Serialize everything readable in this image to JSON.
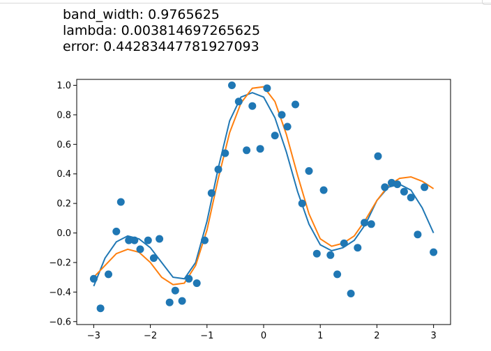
{
  "output": {
    "lines": [
      "band_width: 0.9765625",
      "lambda: 0.003814697265625",
      "error: 0.44283447781927093"
    ]
  },
  "colors": {
    "scatter": "#1f77b4",
    "fit_line": "#1f77b4",
    "true_line": "#ff7f0e"
  },
  "chart_data": {
    "type": "scatter",
    "title": "",
    "xlabel": "",
    "ylabel": "",
    "xlim": [
      -3.3,
      3.3
    ],
    "ylim": [
      -0.62,
      1.04
    ],
    "xticks": [
      -3,
      -2,
      -1,
      0,
      1,
      2,
      3
    ],
    "xtick_labels": [
      "−3",
      "−2",
      "−1",
      "0",
      "1",
      "2",
      "3"
    ],
    "yticks": [
      -0.6,
      -0.4,
      -0.2,
      0.0,
      0.2,
      0.4,
      0.6,
      0.8,
      1.0
    ],
    "ytick_labels": [
      "−0.6",
      "−0.4",
      "−0.2",
      "0.0",
      "0.2",
      "0.4",
      "0.6",
      "0.8",
      "1.0"
    ],
    "grid": false,
    "series": [
      {
        "kind": "scatter",
        "x": [
          -3.0,
          -2.88,
          -2.74,
          -2.6,
          -2.52,
          -2.38,
          -2.28,
          -2.18,
          -2.04,
          -1.94,
          -1.84,
          -1.66,
          -1.56,
          -1.44,
          -1.32,
          -1.18,
          -1.04,
          -0.92,
          -0.8,
          -0.68,
          -0.56,
          -0.44,
          -0.3,
          -0.2,
          -0.06,
          0.06,
          0.2,
          0.32,
          0.42,
          0.56,
          0.68,
          0.8,
          0.94,
          1.06,
          1.18,
          1.3,
          1.42,
          1.54,
          1.66,
          1.78,
          1.9,
          2.02,
          2.14,
          2.26,
          2.36,
          2.48,
          2.6,
          2.72,
          2.84,
          3.0
        ],
        "y": [
          -0.31,
          -0.51,
          -0.28,
          0.01,
          0.21,
          -0.05,
          -0.05,
          -0.11,
          -0.05,
          -0.17,
          -0.04,
          -0.47,
          -0.39,
          -0.46,
          -0.31,
          -0.34,
          -0.05,
          0.27,
          0.43,
          0.54,
          1.0,
          0.89,
          0.56,
          0.86,
          0.57,
          0.98,
          0.66,
          0.8,
          0.72,
          0.87,
          0.2,
          0.42,
          -0.14,
          0.29,
          -0.15,
          -0.28,
          -0.07,
          -0.41,
          -0.1,
          0.07,
          0.06,
          0.52,
          0.31,
          0.34,
          0.33,
          0.28,
          0.24,
          -0.01,
          0.31,
          -0.13
        ]
      },
      {
        "kind": "line",
        "x": [
          -3.0,
          -2.8,
          -2.6,
          -2.4,
          -2.2,
          -2.0,
          -1.8,
          -1.6,
          -1.4,
          -1.2,
          -1.0,
          -0.8,
          -0.6,
          -0.4,
          -0.2,
          0.0,
          0.2,
          0.4,
          0.6,
          0.8,
          1.0,
          1.2,
          1.4,
          1.6,
          1.8,
          2.0,
          2.2,
          2.4,
          2.6,
          2.8,
          3.0
        ],
        "y": [
          -0.36,
          -0.17,
          -0.06,
          -0.02,
          -0.04,
          -0.1,
          -0.2,
          -0.3,
          -0.31,
          -0.2,
          0.08,
          0.44,
          0.76,
          0.92,
          0.95,
          0.92,
          0.78,
          0.55,
          0.28,
          0.06,
          -0.08,
          -0.12,
          -0.1,
          -0.05,
          0.06,
          0.22,
          0.31,
          0.33,
          0.29,
          0.17,
          0.0
        ]
      },
      {
        "kind": "line",
        "x": [
          -3.0,
          -2.8,
          -2.6,
          -2.4,
          -2.2,
          -2.0,
          -1.8,
          -1.6,
          -1.4,
          -1.2,
          -1.0,
          -0.8,
          -0.6,
          -0.4,
          -0.2,
          0.0,
          0.2,
          0.4,
          0.6,
          0.8,
          1.0,
          1.2,
          1.4,
          1.6,
          1.8,
          2.0,
          2.2,
          2.4,
          2.6,
          2.8,
          3.0
        ],
        "y": [
          -0.3,
          -0.22,
          -0.14,
          -0.11,
          -0.13,
          -0.2,
          -0.3,
          -0.35,
          -0.34,
          -0.22,
          0.02,
          0.37,
          0.68,
          0.88,
          0.98,
          0.99,
          0.89,
          0.67,
          0.39,
          0.13,
          -0.04,
          -0.09,
          -0.07,
          -0.02,
          0.09,
          0.22,
          0.32,
          0.37,
          0.38,
          0.35,
          0.3
        ]
      }
    ]
  }
}
